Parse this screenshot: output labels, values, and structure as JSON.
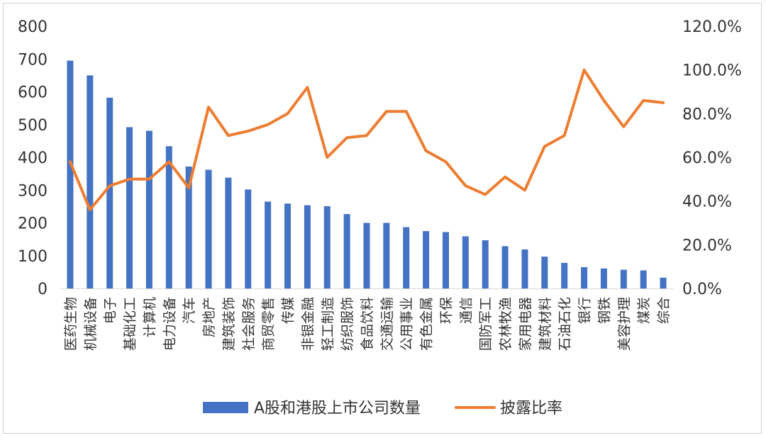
{
  "chart_data": {
    "type": "bar+line",
    "categories": [
      "医药生物",
      "机械设备",
      "电子",
      "基础化工",
      "计算机",
      "电力设备",
      "汽车",
      "房地产",
      "建筑装饰",
      "社会服务",
      "商贸零售",
      "传媒",
      "非银金融",
      "轻工制造",
      "纺织服饰",
      "食品饮料",
      "交通运输",
      "公用事业",
      "有色金属",
      "环保",
      "通信",
      "国防军工",
      "农林牧渔",
      "家用电器",
      "建筑材料",
      "石油石化",
      "银行",
      "钢铁",
      "美容护理",
      "煤炭",
      "综合"
    ],
    "series": [
      {
        "name": "A股和港股上市公司数量",
        "type": "bar",
        "axis": "left",
        "color": "#4472C4",
        "values": [
          695,
          650,
          582,
          492,
          481,
          434,
          372,
          362,
          338,
          302,
          265,
          259,
          254,
          251,
          227,
          200,
          200,
          187,
          175,
          172,
          159,
          147,
          129,
          119,
          97,
          78,
          65,
          61,
          57,
          55,
          33
        ]
      },
      {
        "name": "披露比率",
        "type": "line",
        "axis": "right",
        "color": "#ED7D31",
        "values": [
          0.58,
          0.36,
          0.47,
          0.5,
          0.5,
          0.58,
          0.46,
          0.83,
          0.7,
          0.72,
          0.75,
          0.8,
          0.92,
          0.6,
          0.69,
          0.7,
          0.81,
          0.81,
          0.63,
          0.58,
          0.47,
          0.43,
          0.51,
          0.45,
          0.65,
          0.7,
          1.0,
          0.86,
          0.74,
          0.86,
          0.85
        ]
      }
    ],
    "y_left": {
      "min": 0,
      "max": 800,
      "step": 100,
      "ticks": [
        "0",
        "100",
        "200",
        "300",
        "400",
        "500",
        "600",
        "700",
        "800"
      ]
    },
    "y_right": {
      "min": 0,
      "max": 1.2,
      "step": 0.2,
      "ticks": [
        "0.0%",
        "20.0%",
        "40.0%",
        "60.0%",
        "80.0%",
        "100.0%",
        "120.0%"
      ]
    },
    "grid": false,
    "legend_position": "bottom"
  }
}
